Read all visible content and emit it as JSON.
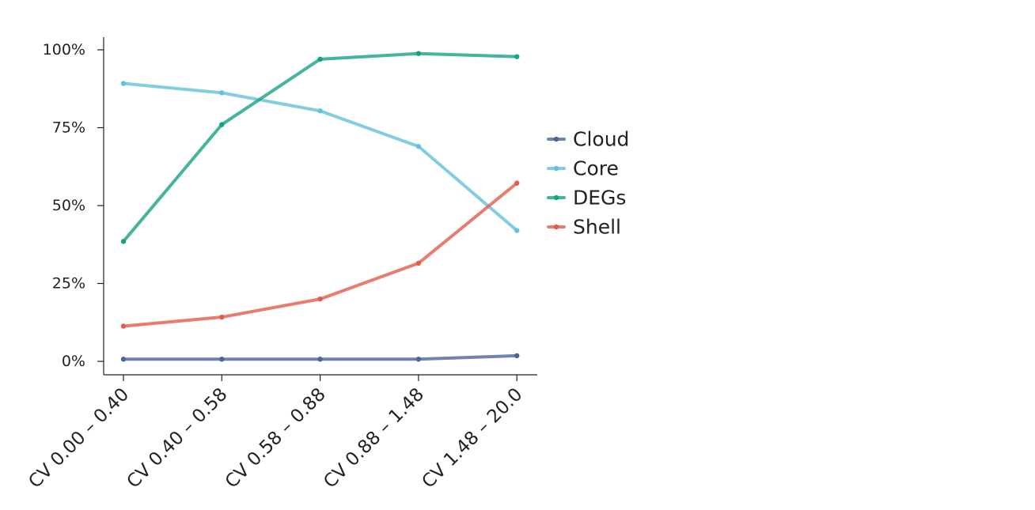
{
  "chart_data": {
    "type": "line",
    "title": "",
    "xlabel": "",
    "ylabel": "",
    "categories": [
      "CV 0.00 – 0.40",
      "CV 0.40 – 0.58",
      "CV 0.58 – 0.88",
      "CV 0.88 – 1.48",
      "CV 1.48 – 20.0"
    ],
    "ylim": [
      0,
      100
    ],
    "yticks": [
      0,
      25,
      50,
      75,
      100
    ],
    "ytick_labels": [
      "0%",
      "25%",
      "50%",
      "75%",
      "100%"
    ],
    "grid": false,
    "legend_position": "right",
    "series": [
      {
        "name": "Cloud",
        "color": "#4c6497",
        "values": [
          0.7,
          0.7,
          0.7,
          0.7,
          1.8
        ]
      },
      {
        "name": "Core",
        "color": "#64c1dc",
        "values": [
          89.2,
          86.2,
          80.4,
          69.0,
          42.0
        ]
      },
      {
        "name": "DEGs",
        "color": "#15a185",
        "values": [
          38.5,
          76.0,
          97.0,
          98.8,
          97.8
        ]
      },
      {
        "name": "Shell",
        "color": "#e25c4b",
        "values": [
          11.3,
          14.2,
          20.0,
          31.5,
          57.2
        ]
      }
    ]
  }
}
